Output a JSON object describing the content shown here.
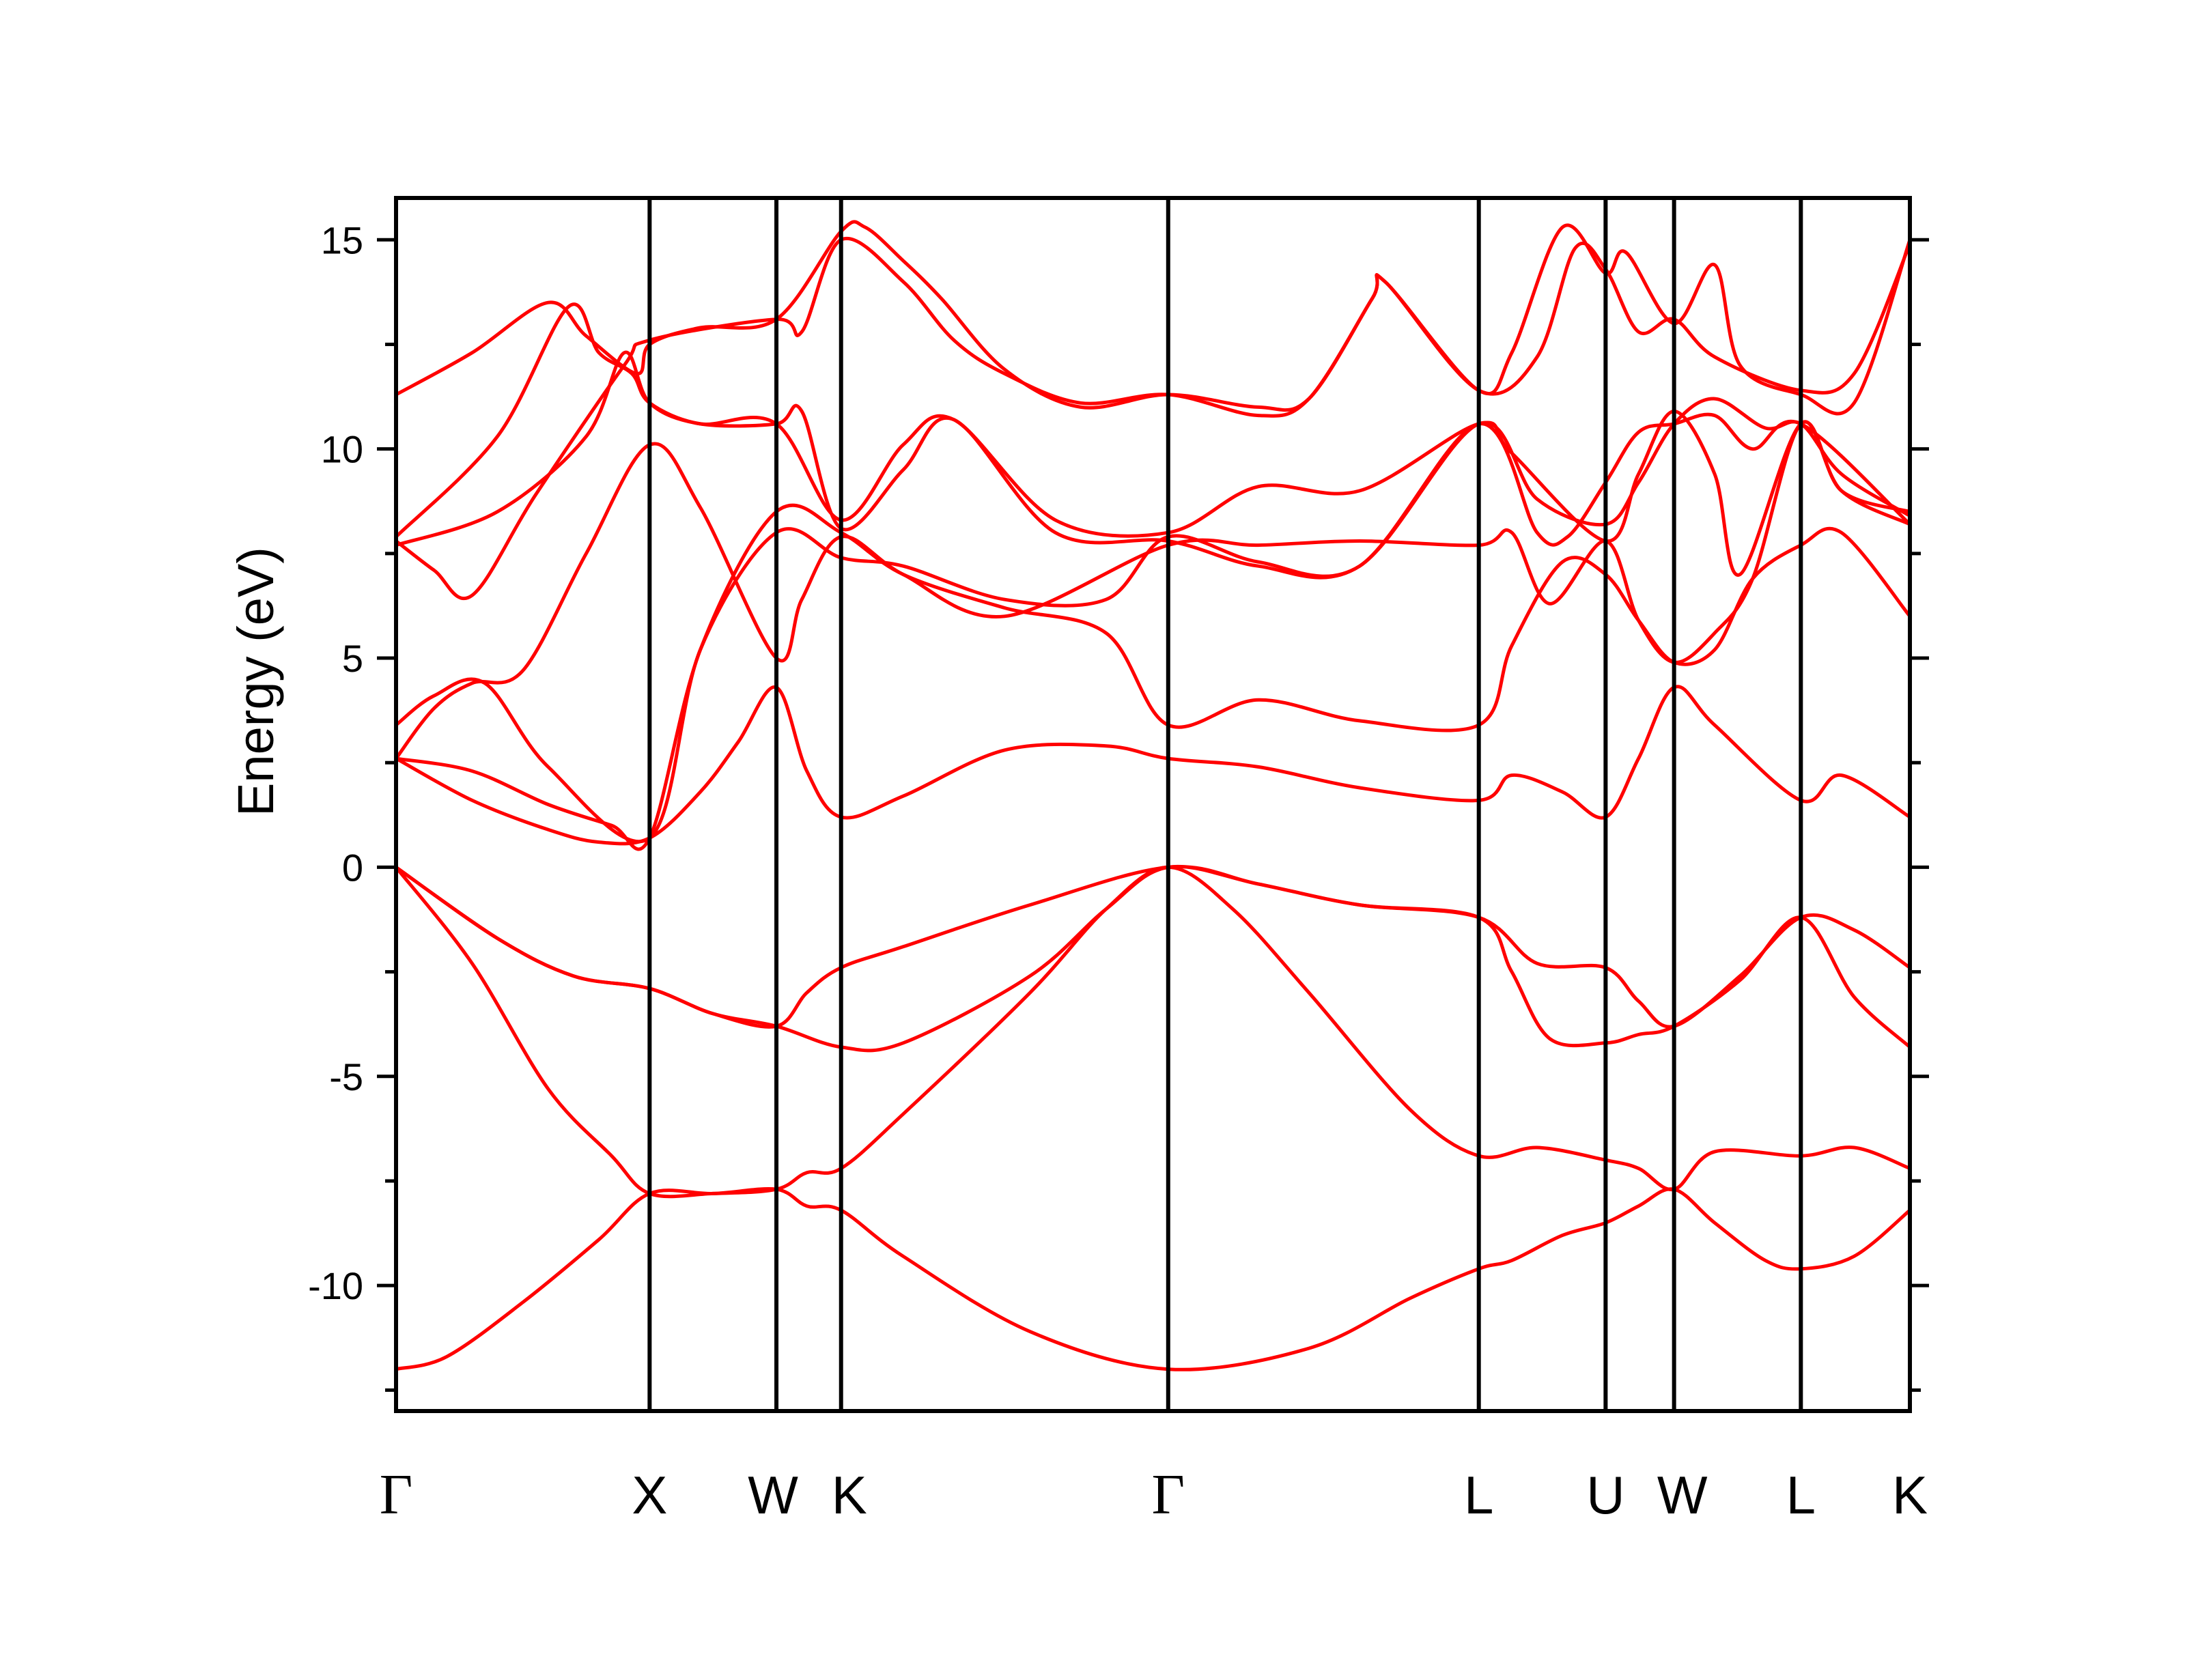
{
  "chart_data": {
    "type": "line",
    "title": "",
    "xlabel": "",
    "ylabel": "Energy (eV)",
    "ylim": [
      -13,
      16
    ],
    "yticks": [
      15,
      10,
      5,
      0,
      -5,
      -10
    ],
    "yminor": [
      12.5,
      7.5,
      2.5,
      -2.5,
      -7.5,
      -12.5
    ],
    "grid": false,
    "legend": "none",
    "line_color": "#ff0000",
    "k_points": [
      {
        "label": "Γ",
        "x": 0,
        "font": "serif"
      },
      {
        "label": "X",
        "x": 1.0,
        "font": "sans"
      },
      {
        "label": "W",
        "x": 1.5,
        "font": "sans"
      },
      {
        "label": "K",
        "x": 1.755,
        "font": "sans"
      },
      {
        "label": "Γ",
        "x": 3.045,
        "font": "serif"
      },
      {
        "label": "L",
        "x": 4.27,
        "font": "sans"
      },
      {
        "label": "U",
        "x": 4.77,
        "font": "sans"
      },
      {
        "label": "W",
        "x": 5.04,
        "font": "sans"
      },
      {
        "label": "L",
        "x": 5.54,
        "font": "sans"
      },
      {
        "label": "K",
        "x": 5.97,
        "font": "sans"
      }
    ],
    "series": [
      {
        "points": [
          [
            0,
            -12
          ],
          [
            0.2,
            -11.7
          ],
          [
            0.5,
            -10.4
          ],
          [
            0.8,
            -8.9
          ],
          [
            1.0,
            -7.8
          ],
          [
            1.25,
            -7.8
          ],
          [
            1.5,
            -7.7
          ],
          [
            1.62,
            -8.1
          ],
          [
            1.755,
            -8.2
          ],
          [
            2.0,
            -9.3
          ],
          [
            2.5,
            -11.1
          ],
          [
            3.045,
            -12
          ],
          [
            3.6,
            -11.5
          ],
          [
            4.0,
            -10.3
          ],
          [
            4.27,
            -9.6
          ],
          [
            4.4,
            -9.4
          ],
          [
            4.6,
            -8.8
          ],
          [
            4.77,
            -8.5
          ],
          [
            4.9,
            -8.1
          ],
          [
            5.04,
            -7.7
          ],
          [
            5.2,
            -8.5
          ],
          [
            5.4,
            -9.4
          ],
          [
            5.54,
            -9.6
          ],
          [
            5.75,
            -9.3
          ],
          [
            5.97,
            -8.2
          ]
        ]
      },
      {
        "points": [
          [
            0,
            0
          ],
          [
            0.3,
            -2.3
          ],
          [
            0.6,
            -5.3
          ],
          [
            0.85,
            -6.9
          ],
          [
            1.0,
            -7.8
          ],
          [
            1.25,
            -7.8
          ],
          [
            1.5,
            -7.7
          ],
          [
            1.62,
            -7.3
          ],
          [
            1.755,
            -7.2
          ],
          [
            2.0,
            -5.9
          ],
          [
            2.5,
            -3.0
          ],
          [
            2.8,
            -1.0
          ],
          [
            3.045,
            0
          ],
          [
            3.3,
            -1.0
          ],
          [
            3.6,
            -3.0
          ],
          [
            4.0,
            -5.8
          ],
          [
            4.27,
            -6.9
          ],
          [
            4.5,
            -6.7
          ],
          [
            4.77,
            -7.0
          ],
          [
            4.9,
            -7.2
          ],
          [
            5.04,
            -7.7
          ],
          [
            5.2,
            -6.8
          ],
          [
            5.54,
            -6.9
          ],
          [
            5.75,
            -6.7
          ],
          [
            5.97,
            -7.2
          ]
        ]
      },
      {
        "points": [
          [
            0,
            0
          ],
          [
            0.4,
            -1.7
          ],
          [
            0.7,
            -2.6
          ],
          [
            1.0,
            -2.9
          ],
          [
            1.25,
            -3.5
          ],
          [
            1.5,
            -3.8
          ],
          [
            1.755,
            -4.3
          ],
          [
            2.0,
            -4.2
          ],
          [
            2.5,
            -2.6
          ],
          [
            2.8,
            -1.0
          ],
          [
            3.045,
            0
          ],
          [
            3.4,
            -0.4
          ],
          [
            3.8,
            -0.9
          ],
          [
            4.27,
            -1.2
          ],
          [
            4.5,
            -2.3
          ],
          [
            4.77,
            -2.4
          ],
          [
            4.9,
            -3.2
          ],
          [
            5.04,
            -3.8
          ],
          [
            5.3,
            -2.6
          ],
          [
            5.54,
            -1.2
          ],
          [
            5.75,
            -1.5
          ],
          [
            5.97,
            -2.4
          ]
        ]
      },
      {
        "points": [
          [
            0,
            0
          ],
          [
            0.4,
            -1.7
          ],
          [
            0.7,
            -2.6
          ],
          [
            1.0,
            -2.9
          ],
          [
            1.25,
            -3.5
          ],
          [
            1.5,
            -3.8
          ],
          [
            1.62,
            -3.0
          ],
          [
            1.755,
            -2.4
          ],
          [
            2.0,
            -1.9
          ],
          [
            2.5,
            -0.9
          ],
          [
            3.045,
            0
          ],
          [
            3.4,
            -0.4
          ],
          [
            3.8,
            -0.9
          ],
          [
            4.27,
            -1.2
          ],
          [
            4.4,
            -2.5
          ],
          [
            4.55,
            -4.1
          ],
          [
            4.77,
            -4.2
          ],
          [
            4.9,
            -4.0
          ],
          [
            5.04,
            -3.8
          ],
          [
            5.3,
            -2.7
          ],
          [
            5.54,
            -1.2
          ],
          [
            5.75,
            -3.1
          ],
          [
            5.97,
            -4.3
          ]
        ]
      },
      {
        "points": [
          [
            0,
            2.6
          ],
          [
            0.3,
            1.6
          ],
          [
            0.6,
            0.9
          ],
          [
            0.8,
            0.6
          ],
          [
            1.0,
            0.7
          ],
          [
            1.2,
            1.8
          ],
          [
            1.35,
            3.0
          ],
          [
            1.5,
            4.3
          ],
          [
            1.62,
            2.3
          ],
          [
            1.755,
            1.2
          ],
          [
            2.0,
            1.7
          ],
          [
            2.4,
            2.8
          ],
          [
            2.8,
            2.9
          ],
          [
            3.045,
            2.6
          ],
          [
            3.4,
            2.4
          ],
          [
            3.8,
            1.9
          ],
          [
            4.27,
            1.6
          ],
          [
            4.4,
            2.2
          ],
          [
            4.6,
            1.8
          ],
          [
            4.77,
            1.2
          ],
          [
            4.9,
            2.6
          ],
          [
            5.04,
            4.3
          ],
          [
            5.2,
            3.4
          ],
          [
            5.54,
            1.6
          ],
          [
            5.7,
            2.2
          ],
          [
            5.97,
            1.2
          ]
        ]
      },
      {
        "points": [
          [
            0,
            2.6
          ],
          [
            0.3,
            2.3
          ],
          [
            0.6,
            1.5
          ],
          [
            0.85,
            1.0
          ],
          [
            1.0,
            0.7
          ],
          [
            1.2,
            5.2
          ],
          [
            1.5,
            8.5
          ],
          [
            1.755,
            8.0
          ],
          [
            2.0,
            7.0
          ],
          [
            2.4,
            6.2
          ],
          [
            2.8,
            5.6
          ],
          [
            3.045,
            3.4
          ],
          [
            3.4,
            4.0
          ],
          [
            3.8,
            3.5
          ],
          [
            4.27,
            3.4
          ],
          [
            4.4,
            5.3
          ],
          [
            4.6,
            7.3
          ],
          [
            4.77,
            7.0
          ],
          [
            4.9,
            5.9
          ],
          [
            5.04,
            4.9
          ],
          [
            5.2,
            5.2
          ],
          [
            5.35,
            6.9
          ],
          [
            5.54,
            7.7
          ],
          [
            5.7,
            8.0
          ],
          [
            5.97,
            6.0
          ]
        ]
      },
      {
        "points": [
          [
            0,
            2.6
          ],
          [
            0.15,
            3.8
          ],
          [
            0.3,
            4.4
          ],
          [
            0.5,
            4.7
          ],
          [
            0.75,
            7.5
          ],
          [
            1.0,
            10.1
          ],
          [
            1.2,
            8.6
          ],
          [
            1.5,
            5.0
          ],
          [
            1.6,
            6.4
          ],
          [
            1.755,
            7.9
          ],
          [
            2.0,
            7.0
          ],
          [
            2.4,
            6.0
          ],
          [
            3.045,
            7.7
          ],
          [
            3.4,
            7.7
          ],
          [
            3.8,
            7.8
          ],
          [
            4.27,
            7.7
          ],
          [
            4.4,
            8.0
          ],
          [
            4.55,
            6.3
          ],
          [
            4.77,
            7.8
          ],
          [
            4.9,
            5.9
          ],
          [
            5.04,
            4.9
          ],
          [
            5.2,
            5.6
          ],
          [
            5.35,
            6.9
          ],
          [
            5.54,
            10.6
          ],
          [
            5.7,
            9.0
          ],
          [
            5.97,
            8.2
          ]
        ]
      },
      {
        "points": [
          [
            0,
            3.4
          ],
          [
            0.15,
            4.1
          ],
          [
            0.35,
            4.4
          ],
          [
            0.6,
            2.4
          ],
          [
            1.0,
            0.7
          ],
          [
            1.2,
            5.2
          ],
          [
            1.5,
            8.0
          ],
          [
            1.755,
            7.4
          ],
          [
            2.0,
            7.2
          ],
          [
            2.4,
            6.4
          ],
          [
            2.8,
            6.4
          ],
          [
            3.045,
            7.9
          ],
          [
            3.4,
            7.3
          ],
          [
            3.8,
            7.2
          ],
          [
            4.27,
            10.6
          ],
          [
            4.5,
            8.8
          ],
          [
            4.77,
            8.2
          ],
          [
            4.9,
            9.2
          ],
          [
            5.04,
            10.6
          ],
          [
            5.2,
            11.2
          ],
          [
            5.4,
            10.5
          ],
          [
            5.54,
            10.6
          ],
          [
            5.7,
            9.4
          ],
          [
            5.97,
            8.4
          ]
        ]
      },
      {
        "points": [
          [
            0,
            7.8
          ],
          [
            0.15,
            7.1
          ],
          [
            0.3,
            6.5
          ],
          [
            0.55,
            8.9
          ],
          [
            0.9,
            12.0
          ],
          [
            1.0,
            12.6
          ],
          [
            1.5,
            13.1
          ],
          [
            1.6,
            12.8
          ],
          [
            1.755,
            15.0
          ],
          [
            2.0,
            14.0
          ],
          [
            2.2,
            12.6
          ],
          [
            2.4,
            11.8
          ],
          [
            2.7,
            11.1
          ],
          [
            3.045,
            11.3
          ],
          [
            3.4,
            10.8
          ],
          [
            3.6,
            11.2
          ],
          [
            3.85,
            13.6
          ],
          [
            3.9,
            14.0
          ],
          [
            4.27,
            11.4
          ],
          [
            4.5,
            12.2
          ],
          [
            4.65,
            14.8
          ],
          [
            4.77,
            14.3
          ],
          [
            4.9,
            12.8
          ],
          [
            5.04,
            13.1
          ],
          [
            5.2,
            12.2
          ],
          [
            5.54,
            11.4
          ],
          [
            5.75,
            11.8
          ],
          [
            5.97,
            14.9
          ]
        ]
      },
      {
        "points": [
          [
            0,
            7.7
          ],
          [
            0.4,
            8.5
          ],
          [
            0.75,
            10.3
          ],
          [
            0.9,
            12.3
          ],
          [
            1.0,
            11.1
          ],
          [
            1.2,
            10.6
          ],
          [
            1.5,
            10.6
          ],
          [
            1.755,
            8.3
          ],
          [
            2.0,
            10.1
          ],
          [
            2.2,
            10.7
          ],
          [
            2.6,
            8.3
          ],
          [
            3.045,
            8.0
          ],
          [
            3.4,
            9.1
          ],
          [
            3.8,
            9.0
          ],
          [
            4.27,
            10.6
          ],
          [
            4.4,
            9.9
          ],
          [
            4.77,
            7.8
          ],
          [
            4.9,
            9.4
          ],
          [
            5.04,
            10.9
          ],
          [
            5.2,
            9.4
          ],
          [
            5.3,
            7.0
          ],
          [
            5.54,
            10.6
          ],
          [
            5.7,
            9.0
          ],
          [
            5.97,
            8.5
          ]
        ]
      },
      {
        "points": [
          [
            0,
            7.9
          ],
          [
            0.4,
            10.3
          ],
          [
            0.68,
            13.4
          ],
          [
            0.8,
            12.3
          ],
          [
            0.93,
            11.8
          ],
          [
            1.0,
            11.1
          ],
          [
            1.2,
            10.6
          ],
          [
            1.5,
            10.6
          ],
          [
            1.6,
            10.9
          ],
          [
            1.755,
            8.1
          ],
          [
            2.0,
            9.5
          ],
          [
            2.2,
            10.7
          ],
          [
            2.6,
            8.0
          ],
          [
            3.045,
            7.8
          ],
          [
            3.4,
            7.2
          ],
          [
            3.8,
            7.2
          ],
          [
            4.27,
            10.6
          ],
          [
            4.5,
            8.0
          ],
          [
            4.62,
            7.9
          ],
          [
            4.77,
            9.2
          ],
          [
            4.9,
            10.4
          ],
          [
            5.04,
            10.6
          ],
          [
            5.2,
            10.8
          ],
          [
            5.35,
            10.0
          ],
          [
            5.54,
            10.6
          ],
          [
            5.97,
            8.2
          ]
        ]
      },
      {
        "points": [
          [
            0,
            11.3
          ],
          [
            0.3,
            12.3
          ],
          [
            0.6,
            13.5
          ],
          [
            0.75,
            12.7
          ],
          [
            0.95,
            11.8
          ],
          [
            1.0,
            12.5
          ],
          [
            1.2,
            12.9
          ],
          [
            1.5,
            13.1
          ],
          [
            1.755,
            15.2
          ],
          [
            1.85,
            15.3
          ],
          [
            2.0,
            14.5
          ],
          [
            2.15,
            13.6
          ],
          [
            2.4,
            11.9
          ],
          [
            2.7,
            11.0
          ],
          [
            3.045,
            11.3
          ],
          [
            3.4,
            11.0
          ],
          [
            3.6,
            11.2
          ],
          [
            3.85,
            13.6
          ],
          [
            3.9,
            14.0
          ],
          [
            4.27,
            11.4
          ],
          [
            4.4,
            12.3
          ],
          [
            4.6,
            15.3
          ],
          [
            4.77,
            14.2
          ],
          [
            4.85,
            14.7
          ],
          [
            5.04,
            13.0
          ],
          [
            5.2,
            14.4
          ],
          [
            5.3,
            12.0
          ],
          [
            5.54,
            11.3
          ],
          [
            5.75,
            11.1
          ],
          [
            5.97,
            15.0
          ]
        ]
      }
    ]
  }
}
